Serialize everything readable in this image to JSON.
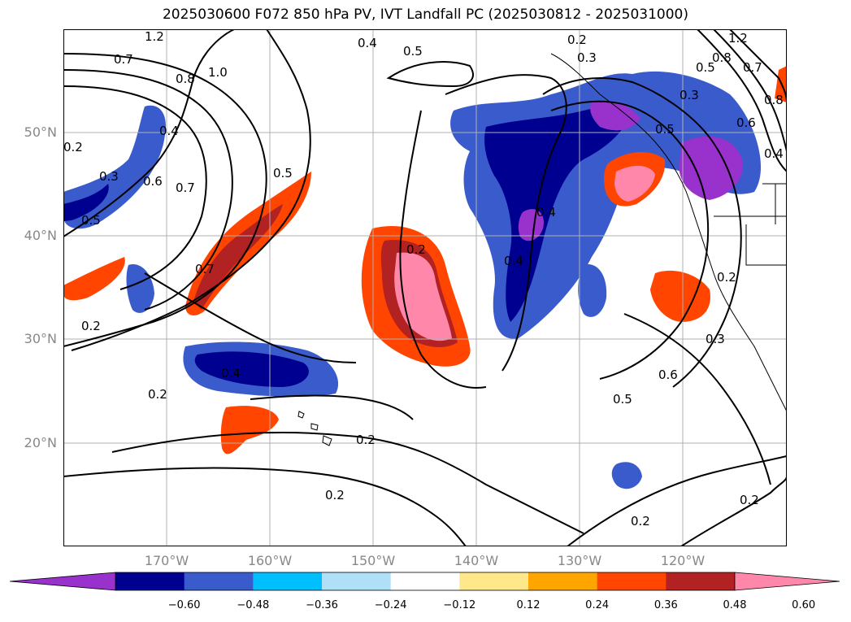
{
  "title": "2025030600 F072 850 hPa PV, IVT Landfall PC (2025030812 - 2025031000)",
  "map": {
    "lat_labels": [
      {
        "text": "50°N",
        "lat": 50
      },
      {
        "text": "40°N",
        "lat": 40
      },
      {
        "text": "30°N",
        "lat": 30
      },
      {
        "text": "20°N",
        "lat": 20
      }
    ],
    "lon_labels": [
      {
        "text": "170°W",
        "lon": -170
      },
      {
        "text": "160°W",
        "lon": -160
      },
      {
        "text": "150°W",
        "lon": -150
      },
      {
        "text": "140°W",
        "lon": -140
      },
      {
        "text": "130°W",
        "lon": -130
      },
      {
        "text": "120°W",
        "lon": -120
      }
    ],
    "contour_labels": [
      "1.2",
      "0.4",
      "0.5",
      "0.3",
      "1.2",
      "0.7",
      "0.8",
      "1.0",
      "0.8",
      "0.5",
      "0.7",
      "0.3",
      "0.8",
      "0.6",
      "0.4",
      "0.2",
      "0.4",
      "0.3",
      "0.6",
      "0.7",
      "0.5",
      "0.5",
      "0.5",
      "0.4",
      "0.4",
      "0.7",
      "0.2",
      "0.2",
      "0.2",
      "0.4",
      "0.2",
      "0.2",
      "0.2",
      "0.3",
      "0.6",
      "0.5",
      "0.2",
      "0.2",
      "0.2"
    ],
    "colors": {
      "neg_060": "#9932cc",
      "neg_048": "#000090",
      "neg_036": "#3a5bcc",
      "neg_024": "#00bfff",
      "neg_012": "#b0e0f8",
      "pos_012": "#ffe88a",
      "pos_024": "#ffa500",
      "pos_036": "#ff4500",
      "pos_048": "#b22222",
      "pos_060": "#ff88aa"
    }
  },
  "colorbar": {
    "ticks": [
      "−0.60",
      "−0.48",
      "−0.36",
      "−0.24",
      "−0.12",
      "0.12",
      "0.24",
      "0.36",
      "0.48",
      "0.60"
    ],
    "colors": [
      "#9932cc",
      "#000090",
      "#3a5bcc",
      "#00bfff",
      "#b0e0f8",
      "#ffffff",
      "#ffe88a",
      "#ffa500",
      "#ff4500",
      "#b22222",
      "#ff88aa"
    ]
  }
}
